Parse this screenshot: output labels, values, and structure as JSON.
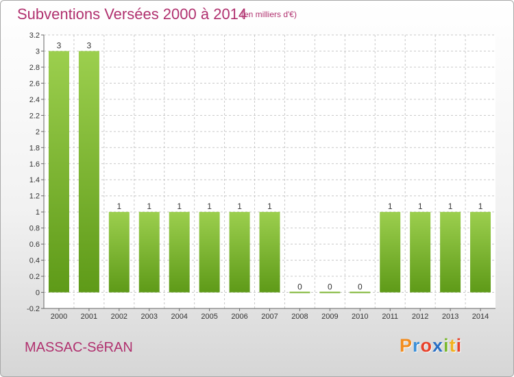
{
  "header": {
    "title": "Subventions Versées 2000 à 2014",
    "subtitle": "(en milliers d'€)"
  },
  "commune": "MASSAC-SéRAN",
  "logo": {
    "text": "Proxiti",
    "letters": [
      {
        "char": "P",
        "color": "#f28c1e"
      },
      {
        "char": "r",
        "color": "#3a8fd8"
      },
      {
        "char": "o",
        "color": "#e8412a"
      },
      {
        "char": "x",
        "color": "#2a6fc4"
      },
      {
        "char": "i",
        "color": "#7ab830"
      },
      {
        "char": "t",
        "color": "#f2b21e"
      },
      {
        "char": "i",
        "color": "#e8412a"
      }
    ]
  },
  "colors": {
    "bar_top": "#9ccf4e",
    "bar_bottom": "#5e9a18",
    "title": "#b0306e",
    "grid": "#c8c8c8"
  },
  "chart_data": {
    "type": "bar",
    "categories": [
      "2000",
      "2001",
      "2002",
      "2003",
      "2004",
      "2005",
      "2006",
      "2007",
      "2008",
      "2009",
      "2010",
      "2011",
      "2012",
      "2013",
      "2014"
    ],
    "values": [
      3,
      3,
      1,
      1,
      1,
      1,
      1,
      1,
      0,
      0,
      0,
      1,
      1,
      1,
      1
    ],
    "data_labels": [
      "3",
      "3",
      "1",
      "1",
      "1",
      "1",
      "1",
      "1",
      "0",
      "0",
      "0",
      "1",
      "1",
      "1",
      "1"
    ],
    "yticks": [
      -0.2,
      0,
      0.2,
      0.4,
      0.6,
      0.8,
      1,
      1.2,
      1.4,
      1.6,
      1.8,
      2,
      2.2,
      2.4,
      2.6,
      2.8,
      3,
      3.2
    ],
    "ytick_labels": [
      "-0.2",
      "0",
      "0.2",
      "0.4",
      "0.6",
      "0.8",
      "1",
      "1.2",
      "1.4",
      "1.6",
      "1.8",
      "2",
      "2.2",
      "2.4",
      "2.6",
      "2.8",
      "3",
      "3.2"
    ],
    "ylim": [
      -0.2,
      3.2
    ],
    "grid": true,
    "legend": "none"
  }
}
